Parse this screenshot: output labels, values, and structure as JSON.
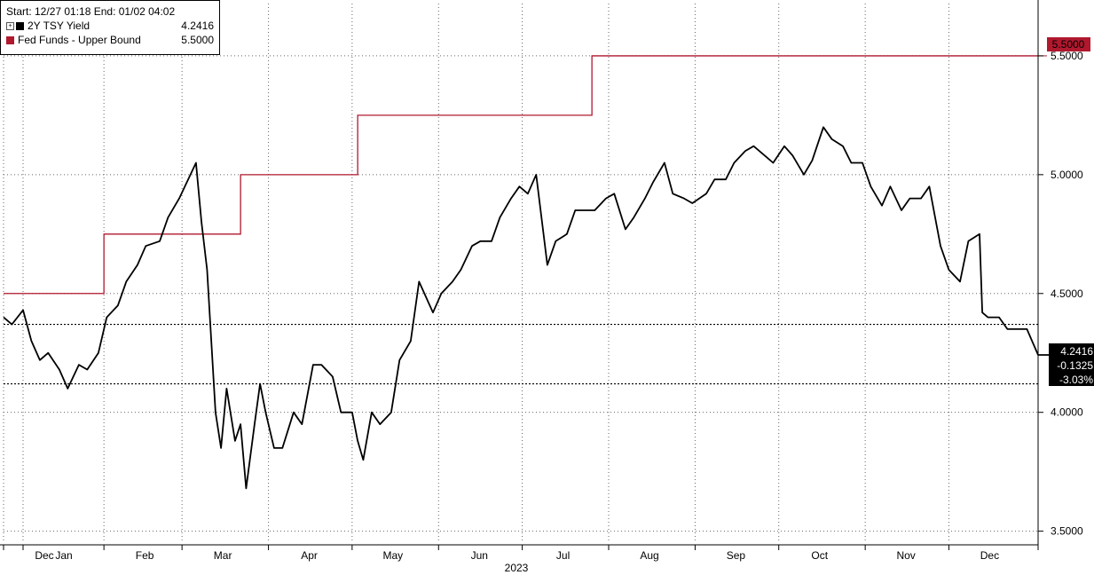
{
  "legend": {
    "header": "Start: 12/27 01:18  End: 01/02 04:02",
    "items": [
      {
        "label": "2Y TSY Yield",
        "value": "4.2416"
      },
      {
        "label": "Fed Funds - Upper Bound",
        "value": "5.5000"
      }
    ]
  },
  "callouts": {
    "fed": "5.5000",
    "yield_last": "4.2416",
    "yield_change": "-0.1325",
    "yield_pct": "-3.03%"
  },
  "chart_data": {
    "type": "line",
    "xlabel": "2023",
    "ylabel": "",
    "ylim": [
      3.45,
      5.72
    ],
    "xlim": [
      "2022-12-27",
      "2024-01-02"
    ],
    "yticks": [
      3.5,
      4.0,
      4.5,
      5.0,
      5.5
    ],
    "ytick_labels": [
      "3.5000",
      "4.0000",
      "4.5000",
      "5.0000",
      "5.5000"
    ],
    "month_ticks": [
      {
        "date": "2022-12-27",
        "label": "Dec"
      },
      {
        "date": "2023-01-03",
        "label": "Jan"
      },
      {
        "date": "2023-02-01",
        "label": "Feb"
      },
      {
        "date": "2023-03-01",
        "label": "Mar"
      },
      {
        "date": "2023-04-01",
        "label": "Apr"
      },
      {
        "date": "2023-05-01",
        "label": "May"
      },
      {
        "date": "2023-06-01",
        "label": "Jun"
      },
      {
        "date": "2023-07-01",
        "label": "Jul"
      },
      {
        "date": "2023-08-01",
        "label": "Aug"
      },
      {
        "date": "2023-09-01",
        "label": "Sep"
      },
      {
        "date": "2023-10-01",
        "label": "Oct"
      },
      {
        "date": "2023-11-01",
        "label": "Nov"
      },
      {
        "date": "2023-12-01",
        "label": "Dec"
      }
    ],
    "reference_lines": [
      4.37,
      4.12
    ],
    "colors": {
      "yield": "#000000",
      "fed": "#b0182e",
      "grid": "#666666"
    },
    "series": [
      {
        "name": "2Y TSY Yield",
        "x": [
          "2022-12-27",
          "2022-12-30",
          "2023-01-03",
          "2023-01-06",
          "2023-01-09",
          "2023-01-12",
          "2023-01-16",
          "2023-01-19",
          "2023-01-23",
          "2023-01-26",
          "2023-01-30",
          "2023-02-02",
          "2023-02-06",
          "2023-02-09",
          "2023-02-13",
          "2023-02-16",
          "2023-02-21",
          "2023-02-24",
          "2023-02-28",
          "2023-03-02",
          "2023-03-06",
          "2023-03-08",
          "2023-03-10",
          "2023-03-13",
          "2023-03-15",
          "2023-03-17",
          "2023-03-20",
          "2023-03-22",
          "2023-03-24",
          "2023-03-27",
          "2023-03-29",
          "2023-03-31",
          "2023-04-03",
          "2023-04-06",
          "2023-04-10",
          "2023-04-13",
          "2023-04-17",
          "2023-04-20",
          "2023-04-24",
          "2023-04-27",
          "2023-05-01",
          "2023-05-03",
          "2023-05-05",
          "2023-05-08",
          "2023-05-11",
          "2023-05-15",
          "2023-05-18",
          "2023-05-22",
          "2023-05-25",
          "2023-05-30",
          "2023-06-02",
          "2023-06-06",
          "2023-06-09",
          "2023-06-13",
          "2023-06-16",
          "2023-06-20",
          "2023-06-23",
          "2023-06-27",
          "2023-06-30",
          "2023-07-03",
          "2023-07-06",
          "2023-07-10",
          "2023-07-13",
          "2023-07-17",
          "2023-07-20",
          "2023-07-24",
          "2023-07-27",
          "2023-07-31",
          "2023-08-03",
          "2023-08-07",
          "2023-08-10",
          "2023-08-14",
          "2023-08-17",
          "2023-08-21",
          "2023-08-24",
          "2023-08-28",
          "2023-08-31",
          "2023-09-05",
          "2023-09-08",
          "2023-09-12",
          "2023-09-15",
          "2023-09-19",
          "2023-09-22",
          "2023-09-26",
          "2023-09-29",
          "2023-10-03",
          "2023-10-06",
          "2023-10-10",
          "2023-10-13",
          "2023-10-17",
          "2023-10-20",
          "2023-10-24",
          "2023-10-27",
          "2023-10-31",
          "2023-11-03",
          "2023-11-07",
          "2023-11-10",
          "2023-11-14",
          "2023-11-17",
          "2023-11-21",
          "2023-11-24",
          "2023-11-28",
          "2023-12-01",
          "2023-12-05",
          "2023-12-08",
          "2023-12-12",
          "2023-12-13",
          "2023-12-15",
          "2023-12-19",
          "2023-12-22",
          "2023-12-26",
          "2023-12-28",
          "2023-12-29",
          "2024-01-02"
        ],
        "y": [
          4.4,
          4.37,
          4.43,
          4.3,
          4.22,
          4.25,
          4.18,
          4.1,
          4.2,
          4.18,
          4.25,
          4.4,
          4.45,
          4.55,
          4.62,
          4.7,
          4.72,
          4.82,
          4.9,
          4.95,
          5.05,
          4.8,
          4.6,
          4.0,
          3.85,
          4.1,
          3.88,
          3.95,
          3.68,
          3.95,
          4.12,
          4.0,
          3.85,
          3.85,
          4.0,
          3.95,
          4.2,
          4.2,
          4.15,
          4.0,
          4.0,
          3.88,
          3.8,
          4.0,
          3.95,
          4.0,
          4.22,
          4.3,
          4.55,
          4.42,
          4.5,
          4.55,
          4.6,
          4.7,
          4.72,
          4.72,
          4.82,
          4.9,
          4.95,
          4.92,
          5.0,
          4.62,
          4.72,
          4.75,
          4.85,
          4.85,
          4.85,
          4.9,
          4.92,
          4.77,
          4.82,
          4.9,
          4.97,
          5.05,
          4.92,
          4.9,
          4.88,
          4.92,
          4.98,
          4.98,
          5.05,
          5.1,
          5.12,
          5.08,
          5.05,
          5.12,
          5.08,
          5.0,
          5.06,
          5.2,
          5.15,
          5.12,
          5.05,
          5.05,
          4.95,
          4.87,
          4.95,
          4.85,
          4.9,
          4.9,
          4.95,
          4.7,
          4.6,
          4.55,
          4.72,
          4.75,
          4.42,
          4.4,
          4.4,
          4.35,
          4.35,
          4.35,
          4.35,
          4.2416
        ]
      },
      {
        "name": "Fed Funds - Upper Bound",
        "step": true,
        "x": [
          "2022-12-27",
          "2023-02-01",
          "2023-03-22",
          "2023-05-03",
          "2023-07-26",
          "2024-01-02"
        ],
        "y": [
          4.5,
          4.75,
          5.0,
          5.25,
          5.5,
          5.5
        ]
      }
    ]
  }
}
